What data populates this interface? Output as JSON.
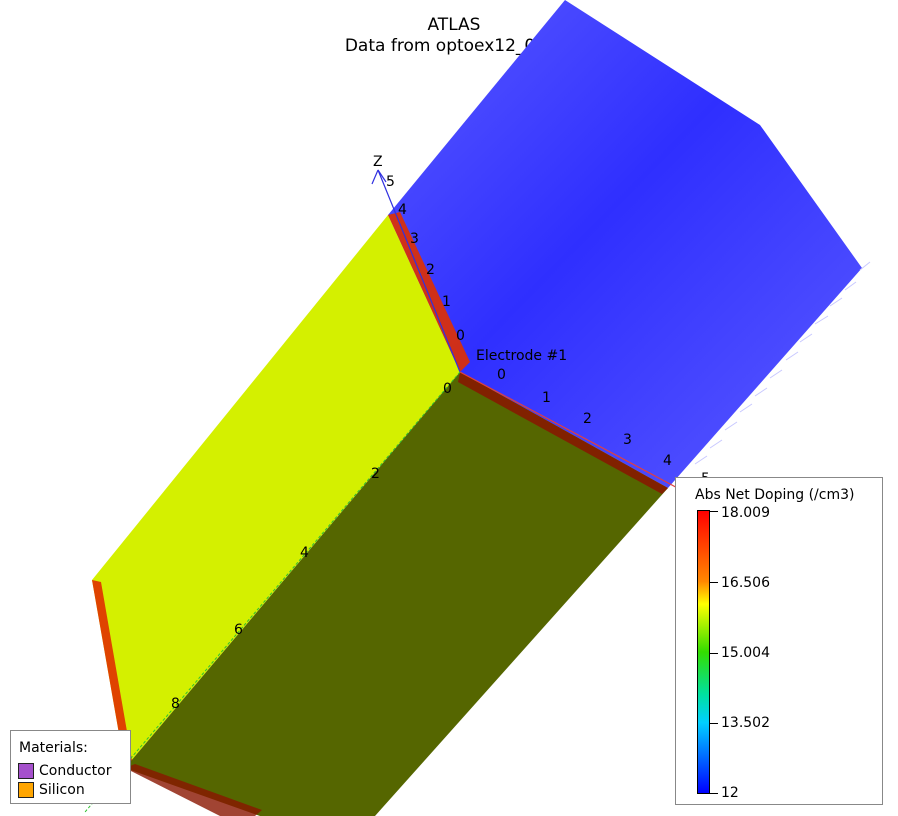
{
  "title": {
    "line1": "ATLAS",
    "line2": "Data from optoex12_0.str"
  },
  "electrode_label": "Electrode #1",
  "axes": {
    "z": {
      "name": "Z",
      "ticks": [
        "0",
        "1",
        "2",
        "3",
        "4",
        "5"
      ]
    },
    "x": {
      "ticks": [
        "0",
        "1",
        "2",
        "3",
        "4",
        "5"
      ]
    },
    "y": {
      "ticks": [
        "0",
        "2",
        "4",
        "6",
        "8"
      ]
    },
    "colors": {
      "x": "#e04040",
      "y": "#30c030",
      "z": "#3030e0"
    }
  },
  "colorbar": {
    "title": "Abs Net Doping (/cm3)",
    "ticks": [
      "18.009",
      "16.506",
      "15.004",
      "13.502",
      "12"
    ]
  },
  "materials": {
    "title": "Materials:",
    "items": [
      {
        "label": "Conductor",
        "color": "#a550cc"
      },
      {
        "label": "Silicon",
        "color": "#ffa500"
      }
    ]
  },
  "colors": {
    "blue_face": "#4c4cff",
    "yellow_face": "#d4f000",
    "olive_face": "#556600",
    "edge_red": "#dd2200"
  }
}
